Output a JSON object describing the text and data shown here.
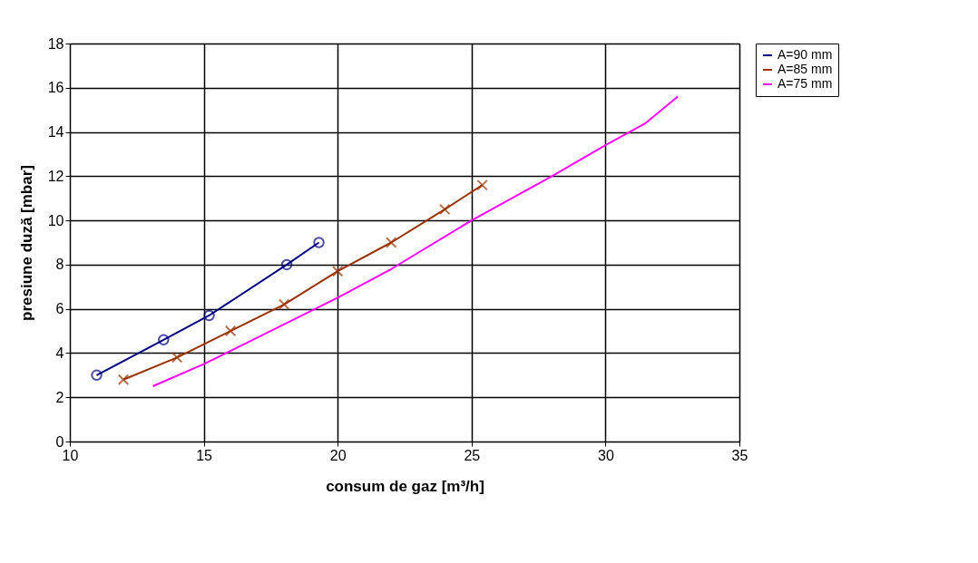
{
  "chart_data": {
    "type": "line",
    "xlabel": "consum de gaz        [m³/h]",
    "ylabel": "presiune duză        [mbar]",
    "xlim": [
      10,
      35
    ],
    "xticks": [
      10,
      15,
      20,
      25,
      30,
      35
    ],
    "ylim": [
      0,
      18
    ],
    "yticks": [
      0,
      2,
      4,
      6,
      8,
      10,
      12,
      14,
      16,
      18
    ],
    "grid": true,
    "legend": "right",
    "series": [
      {
        "name": "A=90 mm",
        "color": "#000080",
        "marker": "circle",
        "x": [
          11,
          13.5,
          15.2,
          18.1,
          19.3
        ],
        "values": [
          3,
          4.6,
          5.7,
          8,
          9
        ]
      },
      {
        "name": "A=85 mm",
        "color": "#993300",
        "marker": "cross",
        "x": [
          12,
          14,
          16,
          18,
          20,
          22,
          24,
          25.4
        ],
        "values": [
          2.8,
          3.8,
          5,
          6.2,
          7.7,
          9,
          10.5,
          11.6
        ]
      },
      {
        "name": "A=75 mm",
        "color": "#ff00ff",
        "marker": "none",
        "x": [
          13.1,
          15,
          17,
          20,
          22,
          25,
          28,
          30,
          31.5,
          32.7
        ],
        "values": [
          2.5,
          3.5,
          4.7,
          6.5,
          7.8,
          10,
          12,
          13.4,
          14.4,
          15.6
        ]
      }
    ]
  }
}
